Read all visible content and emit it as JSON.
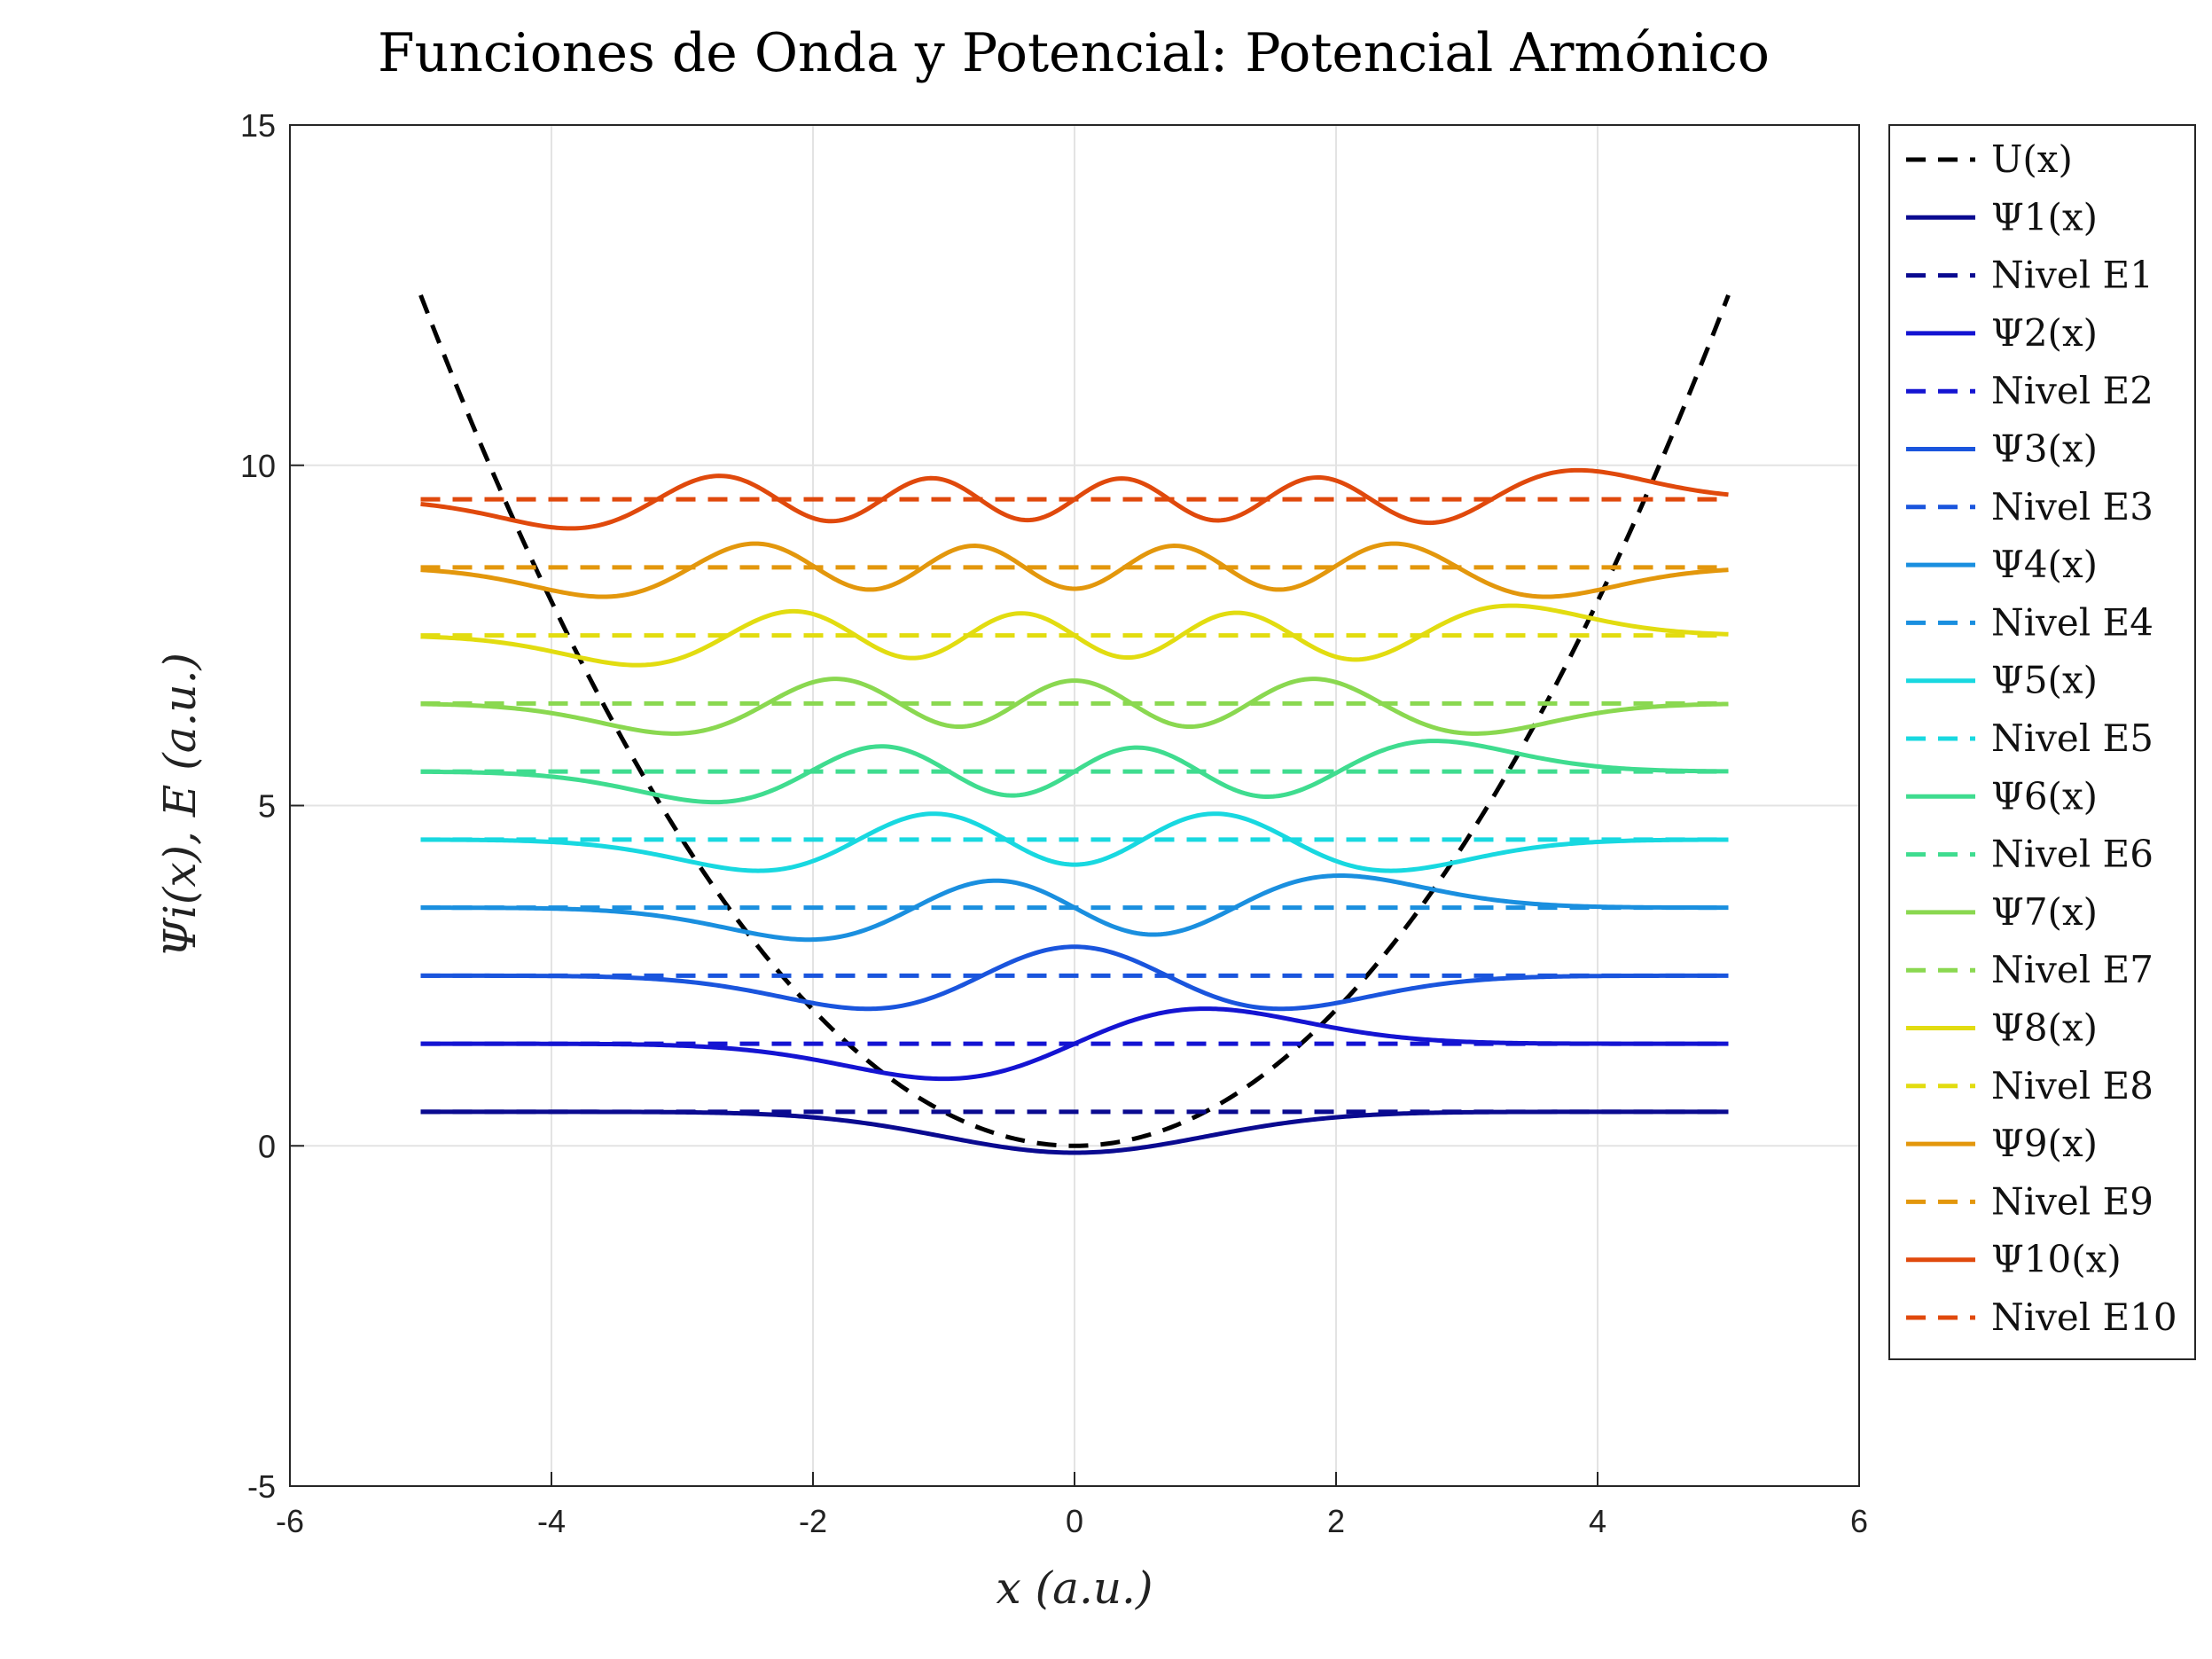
{
  "chart_data": {
    "type": "line",
    "title": "Funciones de Onda y Potencial: Potencial Armónico",
    "xlabel": "x (a.u.)",
    "ylabel": "Ψi(x), E (a.u.)",
    "xlim": [
      -6,
      6
    ],
    "ylim": [
      -5,
      15
    ],
    "xticks": [
      "-6",
      "-4",
      "-2",
      "0",
      "2",
      "4",
      "6"
    ],
    "yticks": [
      "-5",
      "0",
      "5",
      "10",
      "15"
    ],
    "grid": true,
    "legend_position": "outside-right",
    "x_domain": [
      -5,
      5
    ],
    "potential": {
      "name": "U(x)",
      "formula": "x^2/2",
      "color": "#000000",
      "style": "dashed"
    },
    "energies": [
      0.5,
      1.5,
      2.5,
      3.5,
      4.5,
      5.5,
      6.5,
      7.5,
      8.5,
      9.5
    ],
    "wavefunction_scale": 0.8,
    "colors": [
      "#0a0a90",
      "#1414d2",
      "#1a55dd",
      "#1a8fdf",
      "#18d8e0",
      "#3fdc8f",
      "#8ad850",
      "#e2dc10",
      "#e3970c",
      "#e0490c"
    ],
    "legend": [
      "U(x)",
      "Ψ1(x)",
      "Nivel E1",
      "Ψ2(x)",
      "Nivel E2",
      "Ψ3(x)",
      "Nivel E3",
      "Ψ4(x)",
      "Nivel E4",
      "Ψ5(x)",
      "Nivel E5",
      "Ψ6(x)",
      "Nivel E6",
      "Ψ7(x)",
      "Nivel E7",
      "Ψ8(x)",
      "Nivel E8",
      "Ψ9(x)",
      "Nivel E9",
      "Ψ10(x)",
      "Nivel E10"
    ]
  }
}
